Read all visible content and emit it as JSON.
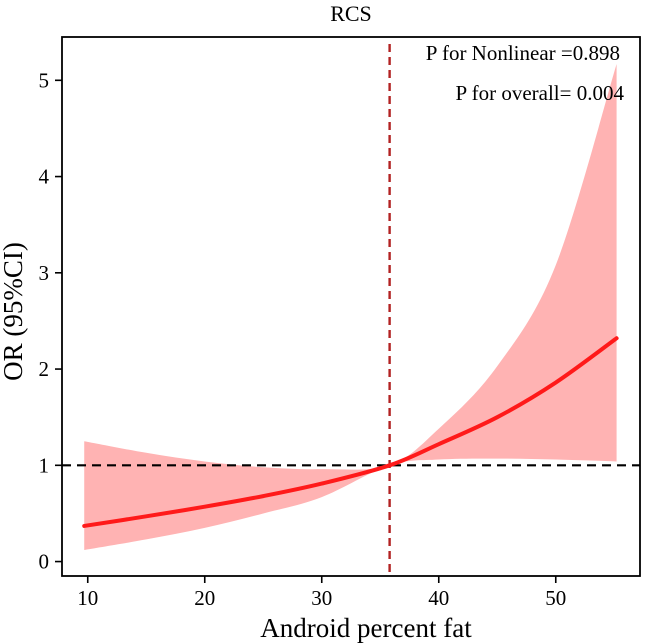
{
  "chart_data": {
    "type": "line",
    "title": "RCS",
    "xlabel": "Android percent fat",
    "ylabel": "OR (95%CI)",
    "xlim": [
      7.8,
      57.2
    ],
    "ylim": [
      -0.15,
      5.45
    ],
    "xticks": [
      10,
      20,
      30,
      40,
      50
    ],
    "yticks": [
      0,
      1,
      2,
      3,
      4,
      5
    ],
    "reference_y": 1,
    "reference_x": 35.8,
    "grid": false,
    "annotations": [
      {
        "text": "P for Nonlinear =0.898"
      },
      {
        "text": "P for overall= 0.004"
      }
    ],
    "series": [
      {
        "name": "OR",
        "x": [
          9.7,
          15,
          20,
          25,
          30,
          35.8,
          40,
          45,
          50,
          55.2
        ],
        "values": [
          0.37,
          0.47,
          0.57,
          0.68,
          0.81,
          1.0,
          1.22,
          1.5,
          1.86,
          2.32
        ]
      },
      {
        "name": "Lower 95% CI",
        "x": [
          9.7,
          15,
          20,
          25,
          30,
          35.8,
          40,
          45,
          50,
          55.2
        ],
        "values": [
          0.12,
          0.23,
          0.35,
          0.5,
          0.67,
          1.0,
          1.06,
          1.07,
          1.06,
          1.04
        ]
      },
      {
        "name": "Upper 95% CI",
        "x": [
          9.7,
          15,
          20,
          25,
          30,
          35.8,
          40,
          45,
          50,
          55.2
        ],
        "values": [
          1.25,
          1.13,
          1.04,
          0.98,
          0.96,
          1.0,
          1.38,
          2.03,
          3.08,
          5.17
        ]
      }
    ],
    "colors": {
      "line": "#ff1a1a",
      "band": "#ffb3b3",
      "vline": "#b22222",
      "hline": "#000000"
    }
  }
}
